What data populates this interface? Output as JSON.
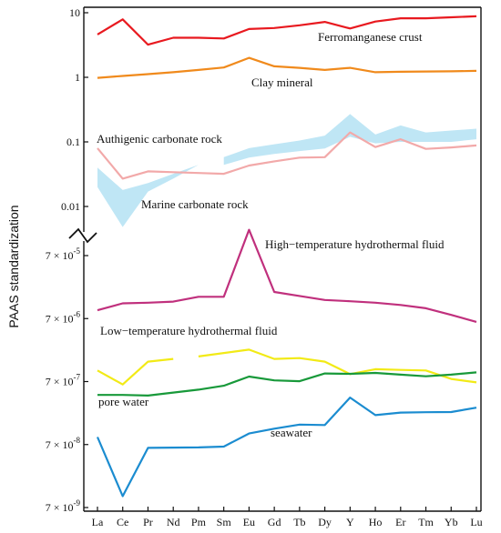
{
  "chart_data": {
    "type": "line",
    "ylabel": "PAAS standardization",
    "categories": [
      "La",
      "Ce",
      "Pr",
      "Nd",
      "Pm",
      "Sm",
      "Eu",
      "Gd",
      "Tb",
      "Dy",
      "Y",
      "Ho",
      "Er",
      "Tm",
      "Yb",
      "Lu"
    ],
    "upper_panel": {
      "scale": "log",
      "ylim": [
        0.01,
        10
      ],
      "yticks": [
        {
          "value": 10,
          "label": "10"
        },
        {
          "value": 1,
          "label": "1"
        },
        {
          "value": 0.1,
          "label": "0.1"
        },
        {
          "value": 0.01,
          "label": "0.01"
        }
      ],
      "series": [
        {
          "name": "Ferromanganese crust",
          "color": "#e8191f",
          "values": [
            4.6,
            7.9,
            3.2,
            4.1,
            4.1,
            4.0,
            5.6,
            5.8,
            6.4,
            7.2,
            5.7,
            7.3,
            8.2,
            8.2,
            8.5,
            8.8
          ]
        },
        {
          "name": "Clay mineral",
          "color": "#f08a1c",
          "values": [
            0.98,
            1.05,
            1.12,
            1.2,
            1.3,
            1.42,
            2.0,
            1.48,
            1.4,
            1.3,
            1.4,
            1.2,
            1.22,
            1.23,
            1.24,
            1.26
          ]
        },
        {
          "name": "Authigenic carbonate rock",
          "color": "#f2a9a9",
          "values": [
            0.08,
            0.027,
            0.035,
            0.034,
            0.033,
            0.032,
            0.043,
            0.05,
            0.057,
            0.058,
            0.14,
            0.083,
            0.11,
            0.078,
            0.082,
            0.088
          ]
        }
      ],
      "bands": [
        {
          "name": "Authigenic carbonate rock",
          "color": "#bfe6f5",
          "lower": [
            null,
            null,
            null,
            null,
            null,
            0.044,
            0.057,
            0.065,
            0.072,
            0.079,
            0.12,
            0.095,
            0.1,
            0.1,
            0.1,
            0.11
          ],
          "upper": [
            null,
            null,
            null,
            null,
            null,
            0.058,
            0.08,
            0.092,
            0.105,
            0.125,
            0.27,
            0.13,
            0.18,
            0.14,
            0.15,
            0.16
          ]
        },
        {
          "name": "Marine carbonate rock",
          "color": "#bfe6f5",
          "lower": [
            0.02,
            0.0048,
            0.017,
            0.027,
            null,
            null,
            null,
            null,
            null,
            null,
            null,
            null,
            null,
            null,
            null,
            null
          ],
          "upper": [
            0.04,
            0.018,
            0.023,
            0.032,
            0.044,
            null,
            null,
            null,
            null,
            null,
            null,
            null,
            null,
            null,
            null,
            null
          ]
        }
      ]
    },
    "lower_panel": {
      "scale": "log",
      "ylim": [
        7e-09,
        0.0002
      ],
      "yticks": [
        {
          "value": 7e-05,
          "base": "7",
          "power": "-5"
        },
        {
          "value": 7e-06,
          "base": "7",
          "power": "-6"
        },
        {
          "value": 7e-07,
          "base": "7",
          "power": "-7"
        },
        {
          "value": 7e-08,
          "base": "7",
          "power": "-8"
        },
        {
          "value": 7e-09,
          "base": "7",
          "power": "-9"
        }
      ],
      "series": [
        {
          "name": "High−temperature hydrothermal fluid",
          "color": "#c0307d",
          "values": [
            9.5e-06,
            1.22e-05,
            1.25e-05,
            1.3e-05,
            1.55e-05,
            1.55e-05,
            0.00018,
            1.85e-05,
            1.6e-05,
            1.38e-05,
            1.32e-05,
            1.25e-05,
            1.15e-05,
            1.02e-05,
            8e-06,
            6.2e-06
          ]
        },
        {
          "name": "Low−temperature hydrothermal fluid",
          "color": "#f2ea16",
          "values": [
            1.05e-06,
            6.3e-07,
            1.45e-06,
            1.6e-06,
            1.75e-06,
            null,
            2.25e-06,
            1.6e-06,
            1.65e-06,
            1.45e-06,
            9.2e-07,
            1.1e-06,
            1.07e-06,
            1.05e-06,
            7.7e-07,
            6.8e-07
          ],
          "gap_after_index": 3
        },
        {
          "name": "pore water",
          "color": "#18993a",
          "values": [
            4.3e-07,
            4.3e-07,
            4.2e-07,
            null,
            5.2e-07,
            6e-07,
            8.4e-07,
            7.3e-07,
            7.1e-07,
            9.4e-07,
            9.3e-07,
            9.6e-07,
            9e-07,
            8.5e-07,
            9e-07,
            9.8e-07
          ]
        },
        {
          "name": "seawater",
          "color": "#1b8cd0",
          "values": [
            9.2e-08,
            1.06e-08,
            6.2e-08,
            null,
            6.3e-08,
            6.5e-08,
            1.05e-07,
            1.25e-07,
            1.45e-07,
            1.43e-07,
            3.9e-07,
            2.05e-07,
            2.25e-07,
            2.28e-07,
            2.3e-07,
            2.7e-07
          ]
        }
      ]
    }
  }
}
